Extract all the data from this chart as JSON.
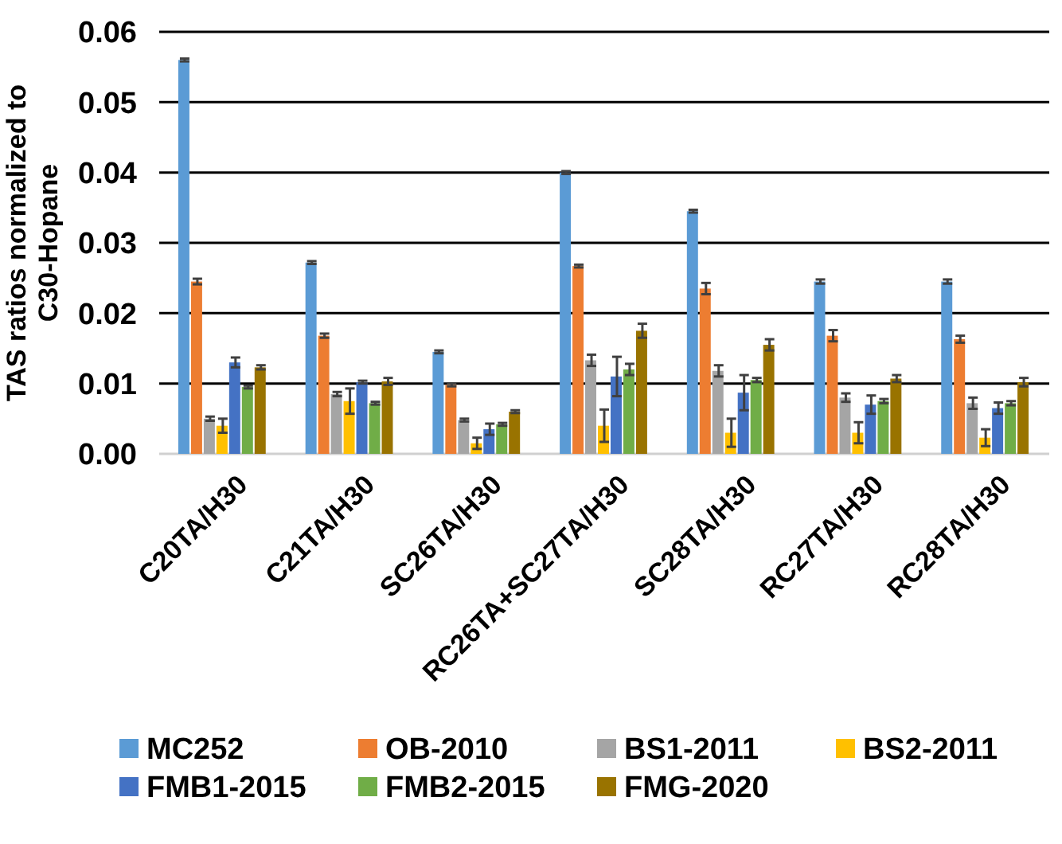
{
  "chart_data": {
    "type": "bar",
    "ylabel": "TAS ratios normalized to\nC30-Hopane",
    "categories": [
      "C20TA/H30",
      "C21TA/H30",
      "SC26TA/H30",
      "RC26TA+SC27TA/H30",
      "SC28TA/H30",
      "RC27TA/H30",
      "RC28TA/H30"
    ],
    "series": [
      {
        "name": "MC252",
        "color": "#5b9bd5",
        "values": [
          0.056,
          0.0272,
          0.0145,
          0.04,
          0.0345,
          0.0245,
          0.0245
        ],
        "errors": [
          0.0002,
          0.0002,
          0.0002,
          0.0002,
          0.0002,
          0.0003,
          0.0003
        ]
      },
      {
        "name": "OB-2010",
        "color": "#ed7d31",
        "values": [
          0.0245,
          0.0168,
          0.0098,
          0.0267,
          0.0235,
          0.0168,
          0.0163
        ],
        "errors": [
          0.0004,
          0.0003,
          0.0002,
          0.0002,
          0.0008,
          0.0008,
          0.0005
        ]
      },
      {
        "name": "BS1-2011",
        "color": "#a5a5a5",
        "values": [
          0.005,
          0.0085,
          0.0048,
          0.0133,
          0.0118,
          0.008,
          0.0072
        ],
        "errors": [
          0.0003,
          0.0003,
          0.0002,
          0.0008,
          0.0008,
          0.0006,
          0.0008
        ]
      },
      {
        "name": "BS2-2011",
        "color": "#ffc000",
        "values": [
          0.004,
          0.0075,
          0.0015,
          0.004,
          0.003,
          0.003,
          0.0023
        ],
        "errors": [
          0.001,
          0.0018,
          0.0008,
          0.0023,
          0.002,
          0.0015,
          0.0012
        ]
      },
      {
        "name": "FMB1-2015",
        "color": "#4472c4",
        "values": [
          0.013,
          0.0102,
          0.0035,
          0.011,
          0.0087,
          0.007,
          0.0065
        ],
        "errors": [
          0.0007,
          0.0002,
          0.0008,
          0.0028,
          0.0025,
          0.0013,
          0.0008
        ]
      },
      {
        "name": "FMB2-2015",
        "color": "#70ad47",
        "values": [
          0.0095,
          0.0072,
          0.0042,
          0.012,
          0.0105,
          0.0075,
          0.0072
        ],
        "errors": [
          0.0002,
          0.0002,
          0.0002,
          0.0008,
          0.0003,
          0.0003,
          0.0003
        ]
      },
      {
        "name": "FMG-2020",
        "color": "#997300",
        "values": [
          0.0123,
          0.0103,
          0.006,
          0.0175,
          0.0155,
          0.0107,
          0.0102
        ],
        "errors": [
          0.0003,
          0.0005,
          0.0002,
          0.001,
          0.0008,
          0.0005,
          0.0006
        ]
      }
    ],
    "ylim": [
      0,
      0.06
    ],
    "yticks": [
      {
        "value": 0,
        "label": "0.00"
      },
      {
        "value": 0.01,
        "label": "0.01"
      },
      {
        "value": 0.02,
        "label": "0.02"
      },
      {
        "value": 0.03,
        "label": "0.03"
      },
      {
        "value": 0.04,
        "label": "0.04"
      },
      {
        "value": 0.05,
        "label": "0.05"
      },
      {
        "value": 0.06,
        "label": "0.06"
      }
    ],
    "grid": "y",
    "legend": "bottom"
  }
}
